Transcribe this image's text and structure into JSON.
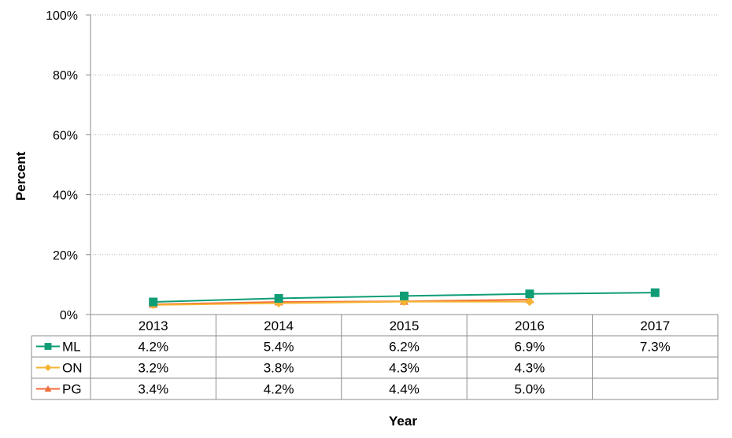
{
  "chart_data": {
    "type": "line",
    "title": "",
    "xlabel": "Year",
    "ylabel": "Percent",
    "ylim": [
      0,
      100
    ],
    "yticks": [
      "0%",
      "20%",
      "40%",
      "60%",
      "80%",
      "100%"
    ],
    "grid": "horizontal dotted",
    "legend": "data-table",
    "categories": [
      "2013",
      "2014",
      "2015",
      "2016",
      "2017"
    ],
    "series": [
      {
        "name": "ML",
        "color": "#0f9d76",
        "marker": "square",
        "values": [
          4.2,
          5.4,
          6.2,
          6.9,
          7.3
        ],
        "labels": [
          "4.2%",
          "5.4%",
          "6.2%",
          "6.9%",
          "7.3%"
        ]
      },
      {
        "name": "ON",
        "color": "#f5b331",
        "marker": "diamond",
        "values": [
          3.2,
          3.8,
          4.3,
          4.3,
          null
        ],
        "labels": [
          "3.2%",
          "3.8%",
          "4.3%",
          "4.3%",
          ""
        ]
      },
      {
        "name": "PG",
        "color": "#f26b3a",
        "marker": "triangle",
        "values": [
          3.4,
          4.2,
          4.4,
          5.0,
          null
        ],
        "labels": [
          "3.4%",
          "4.2%",
          "4.4%",
          "5.0%",
          ""
        ]
      }
    ]
  }
}
